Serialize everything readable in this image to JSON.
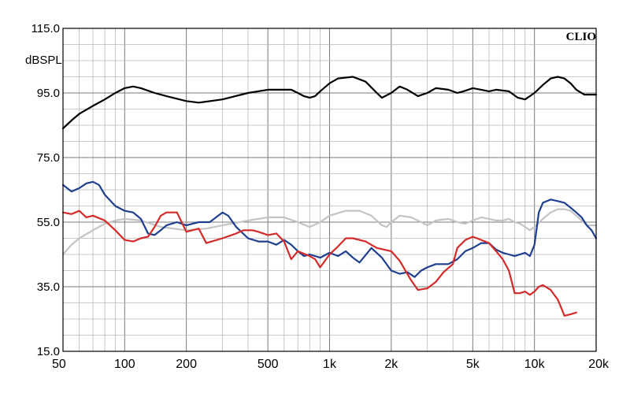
{
  "chart_data": {
    "type": "line",
    "title": "",
    "xlabel": "",
    "ylabel": "dBSPL",
    "brand": "CLIO",
    "xscale": "log",
    "xlim": [
      50,
      20000
    ],
    "ylim": [
      15,
      115
    ],
    "grid": true,
    "y_ticks": [
      "15.0",
      "35.0",
      "55.0",
      "75.0",
      "95.0",
      "115.0"
    ],
    "x_ticks": [
      {
        "value": 50,
        "label": "50"
      },
      {
        "value": 100,
        "label": "100"
      },
      {
        "value": 200,
        "label": "200"
      },
      {
        "value": 500,
        "label": "500"
      },
      {
        "value": 1000,
        "label": "1k"
      },
      {
        "value": 2000,
        "label": "2k"
      },
      {
        "value": 5000,
        "label": "5k"
      },
      {
        "value": 10000,
        "label": "10k"
      },
      {
        "value": 20000,
        "label": "20k"
      }
    ],
    "series": [
      {
        "color": "#000000",
        "points": [
          [
            50,
            84
          ],
          [
            55,
            86.5
          ],
          [
            60,
            88.5
          ],
          [
            70,
            91
          ],
          [
            80,
            93
          ],
          [
            90,
            95
          ],
          [
            100,
            96.5
          ],
          [
            110,
            97
          ],
          [
            120,
            96.5
          ],
          [
            140,
            95
          ],
          [
            160,
            94
          ],
          [
            200,
            92.5
          ],
          [
            230,
            92
          ],
          [
            300,
            93
          ],
          [
            400,
            95
          ],
          [
            500,
            96
          ],
          [
            600,
            96
          ],
          [
            650,
            96
          ],
          [
            700,
            95
          ],
          [
            750,
            94
          ],
          [
            800,
            93.5
          ],
          [
            850,
            94
          ],
          [
            900,
            95.5
          ],
          [
            1000,
            98
          ],
          [
            1100,
            99.5
          ],
          [
            1300,
            100
          ],
          [
            1500,
            98.5
          ],
          [
            1700,
            95
          ],
          [
            1800,
            93.5
          ],
          [
            2000,
            95
          ],
          [
            2200,
            97
          ],
          [
            2400,
            96
          ],
          [
            2700,
            94
          ],
          [
            3000,
            95
          ],
          [
            3300,
            96.5
          ],
          [
            3800,
            96
          ],
          [
            4200,
            95
          ],
          [
            4500,
            95.5
          ],
          [
            5000,
            96.5
          ],
          [
            5500,
            96
          ],
          [
            6000,
            95.5
          ],
          [
            6500,
            96
          ],
          [
            7500,
            95.5
          ],
          [
            8300,
            93.5
          ],
          [
            9000,
            93
          ],
          [
            10000,
            95
          ],
          [
            11000,
            97.5
          ],
          [
            12000,
            99.5
          ],
          [
            13000,
            100
          ],
          [
            14000,
            99.5
          ],
          [
            15000,
            98
          ],
          [
            16000,
            96
          ],
          [
            17500,
            94.5
          ],
          [
            20000,
            94.5
          ]
        ]
      },
      {
        "color": "#1f3f8f",
        "points": [
          [
            50,
            66.5
          ],
          [
            55,
            64.5
          ],
          [
            60,
            65.5
          ],
          [
            65,
            67
          ],
          [
            70,
            67.5
          ],
          [
            75,
            66.5
          ],
          [
            80,
            63.5
          ],
          [
            90,
            60
          ],
          [
            100,
            58.5
          ],
          [
            110,
            58
          ],
          [
            120,
            56
          ],
          [
            130,
            51.5
          ],
          [
            140,
            51
          ],
          [
            150,
            52.5
          ],
          [
            160,
            54
          ],
          [
            180,
            55
          ],
          [
            200,
            54
          ],
          [
            230,
            55
          ],
          [
            260,
            55
          ],
          [
            300,
            58
          ],
          [
            320,
            57
          ],
          [
            350,
            53.5
          ],
          [
            400,
            50
          ],
          [
            450,
            49
          ],
          [
            500,
            49
          ],
          [
            550,
            48
          ],
          [
            600,
            49.5
          ],
          [
            650,
            48
          ],
          [
            700,
            46
          ],
          [
            750,
            44.5
          ],
          [
            800,
            45
          ],
          [
            900,
            44
          ],
          [
            1000,
            45.5
          ],
          [
            1100,
            44.5
          ],
          [
            1200,
            46
          ],
          [
            1300,
            44
          ],
          [
            1400,
            42.5
          ],
          [
            1600,
            47
          ],
          [
            1800,
            44
          ],
          [
            2000,
            40
          ],
          [
            2200,
            39
          ],
          [
            2400,
            39.5
          ],
          [
            2600,
            38
          ],
          [
            2800,
            40
          ],
          [
            3000,
            41
          ],
          [
            3300,
            42
          ],
          [
            3800,
            42
          ],
          [
            4200,
            43.5
          ],
          [
            4600,
            46
          ],
          [
            5000,
            47
          ],
          [
            5500,
            48.5
          ],
          [
            6000,
            48.5
          ],
          [
            6500,
            46.5
          ],
          [
            7000,
            45.5
          ],
          [
            7500,
            45
          ],
          [
            8000,
            44.5
          ],
          [
            9000,
            45.5
          ],
          [
            9500,
            44.5
          ],
          [
            10000,
            48
          ],
          [
            10500,
            58
          ],
          [
            11000,
            61
          ],
          [
            12000,
            62
          ],
          [
            13000,
            61.5
          ],
          [
            14000,
            61
          ],
          [
            15000,
            59.5
          ],
          [
            16000,
            58
          ],
          [
            17000,
            56.5
          ],
          [
            18000,
            54
          ],
          [
            19000,
            52.5
          ],
          [
            20000,
            50
          ]
        ]
      },
      {
        "color": "#d42a2a",
        "points": [
          [
            50,
            58
          ],
          [
            55,
            57.5
          ],
          [
            60,
            58.5
          ],
          [
            65,
            56.5
          ],
          [
            70,
            57
          ],
          [
            80,
            55.5
          ],
          [
            90,
            52.5
          ],
          [
            100,
            49.5
          ],
          [
            110,
            49
          ],
          [
            120,
            50
          ],
          [
            130,
            50.5
          ],
          [
            140,
            53.5
          ],
          [
            150,
            57
          ],
          [
            160,
            58
          ],
          [
            180,
            58
          ],
          [
            200,
            52
          ],
          [
            230,
            53
          ],
          [
            250,
            48.5
          ],
          [
            300,
            50
          ],
          [
            350,
            51.5
          ],
          [
            380,
            52.5
          ],
          [
            420,
            52.5
          ],
          [
            450,
            52
          ],
          [
            500,
            51
          ],
          [
            550,
            51.5
          ],
          [
            600,
            49
          ],
          [
            650,
            43.5
          ],
          [
            700,
            46
          ],
          [
            800,
            44.5
          ],
          [
            850,
            43.5
          ],
          [
            900,
            41
          ],
          [
            1000,
            45
          ],
          [
            1100,
            47.5
          ],
          [
            1200,
            50
          ],
          [
            1300,
            50
          ],
          [
            1500,
            49
          ],
          [
            1700,
            47
          ],
          [
            2000,
            46
          ],
          [
            2200,
            43
          ],
          [
            2500,
            37
          ],
          [
            2700,
            34
          ],
          [
            3000,
            34.5
          ],
          [
            3300,
            36.5
          ],
          [
            3600,
            39.5
          ],
          [
            4000,
            42
          ],
          [
            4200,
            47
          ],
          [
            4600,
            49.5
          ],
          [
            5000,
            50.5
          ],
          [
            5500,
            49.5
          ],
          [
            6000,
            48.5
          ],
          [
            6500,
            46
          ],
          [
            7000,
            43.5
          ],
          [
            7500,
            40
          ],
          [
            8000,
            33
          ],
          [
            8500,
            33
          ],
          [
            9000,
            33.5
          ],
          [
            9500,
            32.5
          ],
          [
            10000,
            33.5
          ],
          [
            10500,
            35
          ],
          [
            11000,
            35.5
          ],
          [
            12000,
            34
          ],
          [
            13000,
            31
          ],
          [
            13500,
            28.5
          ],
          [
            14000,
            26
          ],
          [
            15000,
            26.5
          ],
          [
            16000,
            27
          ]
        ]
      },
      {
        "color": "#c4c4c4",
        "points": [
          [
            50,
            45
          ],
          [
            55,
            48
          ],
          [
            60,
            50
          ],
          [
            70,
            52.5
          ],
          [
            80,
            54.5
          ],
          [
            90,
            55.5
          ],
          [
            100,
            56
          ],
          [
            120,
            55.5
          ],
          [
            150,
            53.5
          ],
          [
            200,
            52.5
          ],
          [
            250,
            53
          ],
          [
            300,
            54
          ],
          [
            400,
            55.5
          ],
          [
            500,
            56.5
          ],
          [
            600,
            56.5
          ],
          [
            700,
            55
          ],
          [
            800,
            53.5
          ],
          [
            900,
            55
          ],
          [
            1000,
            57
          ],
          [
            1200,
            58.5
          ],
          [
            1400,
            58.5
          ],
          [
            1600,
            57
          ],
          [
            1800,
            54
          ],
          [
            1900,
            53.5
          ],
          [
            2000,
            55
          ],
          [
            2200,
            57
          ],
          [
            2500,
            56.5
          ],
          [
            2800,
            55
          ],
          [
            3000,
            54
          ],
          [
            3300,
            55.5
          ],
          [
            3800,
            56
          ],
          [
            4200,
            55
          ],
          [
            4600,
            54.5
          ],
          [
            5000,
            55.5
          ],
          [
            5500,
            56.5
          ],
          [
            6000,
            56
          ],
          [
            6500,
            55.5
          ],
          [
            7000,
            55.5
          ],
          [
            7500,
            56
          ],
          [
            8000,
            55
          ],
          [
            8500,
            54.5
          ],
          [
            9000,
            53.5
          ],
          [
            9500,
            52.5
          ],
          [
            10000,
            53.5
          ],
          [
            11000,
            56
          ],
          [
            12000,
            58
          ],
          [
            13000,
            59
          ],
          [
            14000,
            59
          ],
          [
            15000,
            58.5
          ],
          [
            16000,
            57
          ],
          [
            17000,
            55.5
          ],
          [
            18000,
            54
          ],
          [
            20000,
            54
          ]
        ]
      }
    ]
  }
}
